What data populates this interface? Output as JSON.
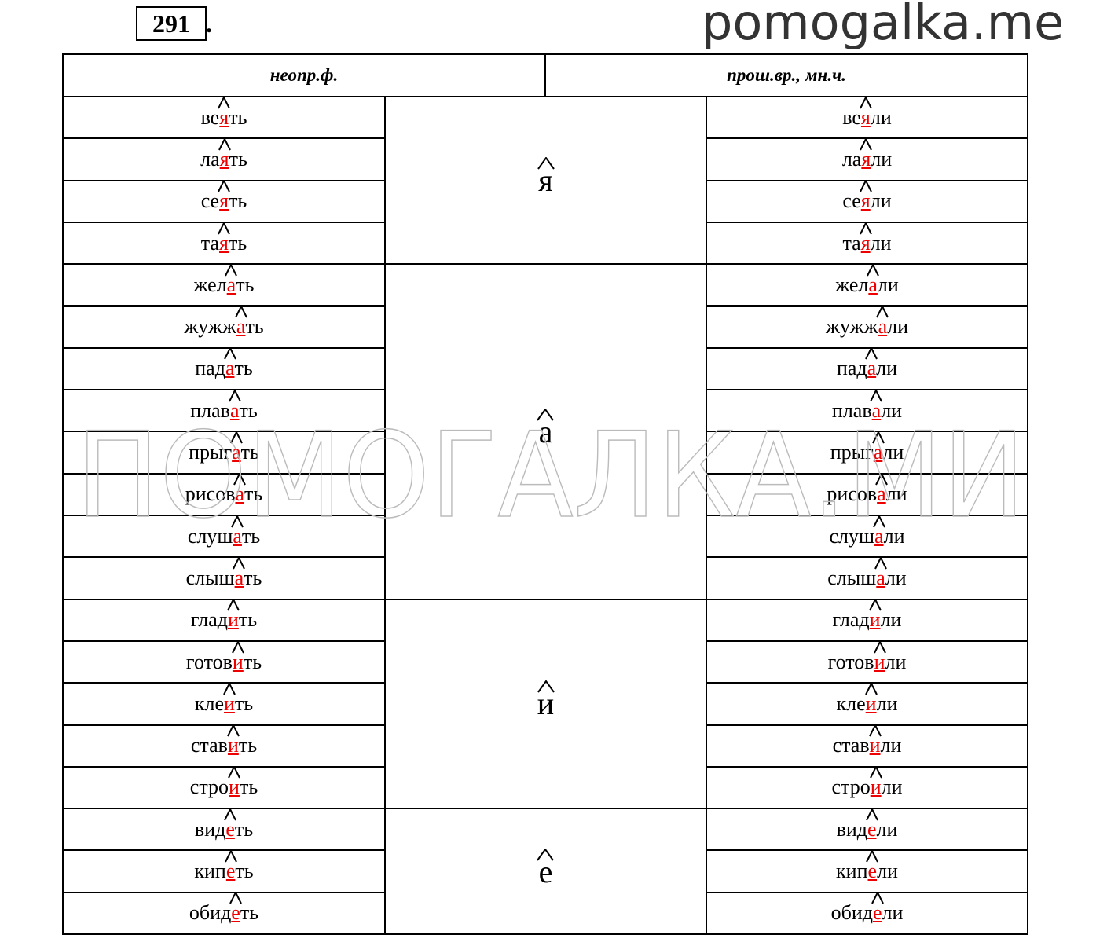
{
  "header": {
    "number": "291",
    "number_suffix": ".",
    "site": "pomogalka.me",
    "watermark": "ПОМОГАЛКА.МИ"
  },
  "table": {
    "headers": [
      "неопр.ф.",
      "прош.вр., мн.ч."
    ],
    "groups": [
      {
        "letter": "я",
        "rows": [
          {
            "inf": [
              "ве",
              "я",
              "ть"
            ],
            "past": [
              "ве",
              "я",
              "ли"
            ]
          },
          {
            "inf": [
              "ла",
              "я",
              "ть"
            ],
            "past": [
              "ла",
              "я",
              "ли"
            ]
          },
          {
            "inf": [
              "се",
              "я",
              "ть"
            ],
            "past": [
              "се",
              "я",
              "ли"
            ]
          },
          {
            "inf": [
              "та",
              "я",
              "ть"
            ],
            "past": [
              "та",
              "я",
              "ли"
            ]
          }
        ]
      },
      {
        "letter": "а",
        "rows": [
          {
            "inf": [
              "жел",
              "а",
              "ть"
            ],
            "past": [
              "жел",
              "а",
              "ли"
            ]
          },
          {
            "inf": [
              "жужж",
              "а",
              "ть"
            ],
            "past": [
              "жужж",
              "а",
              "ли"
            ]
          },
          {
            "inf": [
              "пад",
              "а",
              "ть"
            ],
            "past": [
              "пад",
              "а",
              "ли"
            ]
          },
          {
            "inf": [
              "плав",
              "а",
              "ть"
            ],
            "past": [
              "плав",
              "а",
              "ли"
            ]
          },
          {
            "inf": [
              "прыг",
              "а",
              "ть"
            ],
            "past": [
              "прыг",
              "а",
              "ли"
            ]
          },
          {
            "inf": [
              "рисов",
              "а",
              "ть"
            ],
            "past": [
              "рисов",
              "а",
              "ли"
            ]
          },
          {
            "inf": [
              "слуш",
              "а",
              "ть"
            ],
            "past": [
              "слуш",
              "а",
              "ли"
            ]
          },
          {
            "inf": [
              "слыш",
              "а",
              "ть"
            ],
            "past": [
              "слыш",
              "а",
              "ли"
            ]
          }
        ]
      },
      {
        "letter": "и",
        "rows": [
          {
            "inf": [
              "глад",
              "и",
              "ть"
            ],
            "past": [
              "глад",
              "и",
              "ли"
            ]
          },
          {
            "inf": [
              "готов",
              "и",
              "ть"
            ],
            "past": [
              "готов",
              "и",
              "ли"
            ]
          },
          {
            "inf": [
              "кле",
              "и",
              "ть"
            ],
            "past": [
              "кле",
              "и",
              "ли"
            ]
          },
          {
            "inf": [
              "став",
              "и",
              "ть"
            ],
            "past": [
              "став",
              "и",
              "ли"
            ]
          },
          {
            "inf": [
              "стро",
              "и",
              "ть"
            ],
            "past": [
              "стро",
              "и",
              "ли"
            ]
          }
        ]
      },
      {
        "letter": "е",
        "rows": [
          {
            "inf": [
              "вид",
              "е",
              "ть"
            ],
            "past": [
              "вид",
              "е",
              "ли"
            ]
          },
          {
            "inf": [
              "кип",
              "е",
              "ть"
            ],
            "past": [
              "кип",
              "е",
              "ли"
            ]
          },
          {
            "inf": [
              "обид",
              "е",
              "ть"
            ],
            "past": [
              "обид",
              "е",
              "ли"
            ]
          }
        ]
      }
    ]
  }
}
